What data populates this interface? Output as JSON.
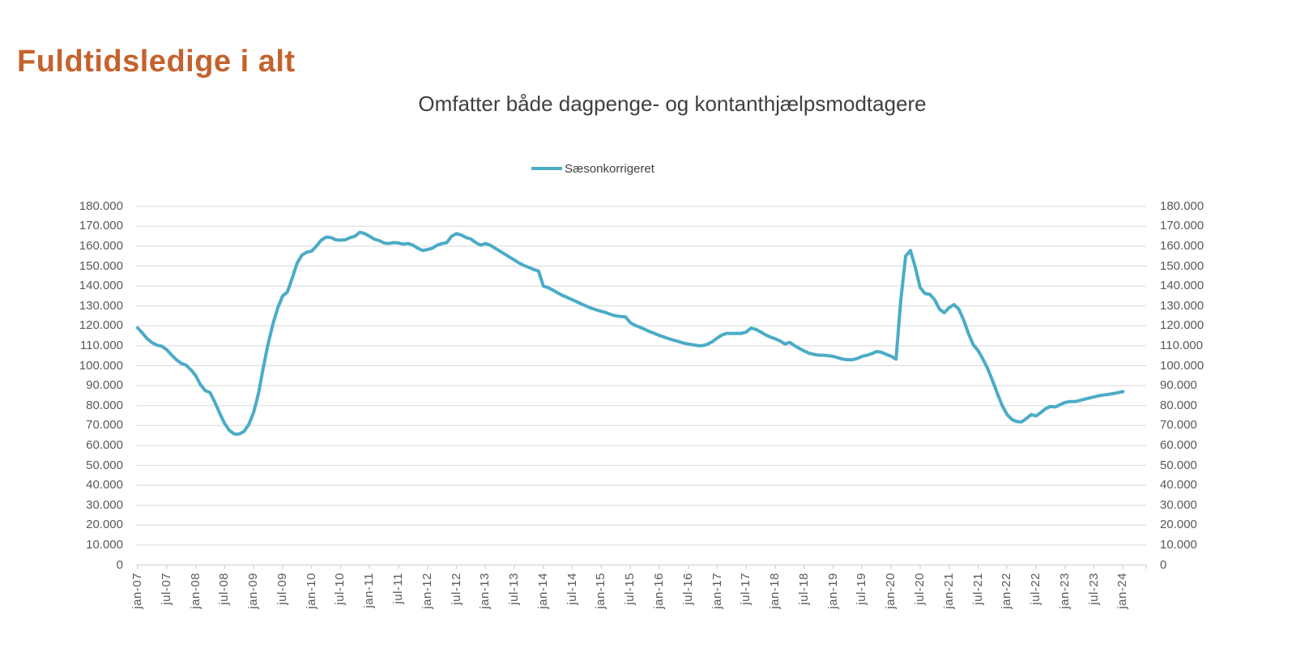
{
  "page": {
    "title": "Fuldtidsledige i alt"
  },
  "chart": {
    "subtitle": "Omfatter både dagpenge- og kontanthjælpsmodtagere",
    "legend": {
      "label": "Sæsonkorrigeret"
    },
    "colors": {
      "title": "#C4622D",
      "subtitle": "#3F3F3F",
      "axis_label": "#595959",
      "gridline": "#D9D9D9",
      "axis_line": "#D9D9D9",
      "line": "#4BACC6"
    }
  },
  "chart_data": {
    "type": "line",
    "title": "Omfatter både dagpenge- og kontanthjælpsmodtagere",
    "legend_position": "top-center",
    "grid": "horizontal",
    "ylim": [
      0,
      180000
    ],
    "y_tick_step": 10000,
    "y_tick_labels": [
      "180.000",
      "170.000",
      "160.000",
      "150.000",
      "140.000",
      "130.000",
      "120.000",
      "110.000",
      "100.000",
      "90.000",
      "80.000",
      "70.000",
      "60.000",
      "50.000",
      "40.000",
      "30.000",
      "20.000",
      "10.000",
      "0"
    ],
    "x_frequency": "monthly",
    "x_start": "jan-07",
    "x_end": "jan-24",
    "x_tick_labels": [
      "jan-07",
      "jul-07",
      "jan-08",
      "jul-08",
      "jan-09",
      "jul-09",
      "jan-10",
      "jul-10",
      "jan-11",
      "jul-11",
      "jan-12",
      "jul-12",
      "jan-13",
      "jul-13",
      "jan-14",
      "jul-14",
      "jan-15",
      "jul-15",
      "jan-16",
      "jul-16",
      "jan-17",
      "jul-17",
      "jan-18",
      "jul-18",
      "jan-19",
      "jul-19",
      "jan-20",
      "jul-20",
      "jan-21",
      "jul-21",
      "jan-22",
      "jul-22",
      "jan-23",
      "jul-23",
      "jan-24"
    ],
    "series": [
      {
        "name": "Sæsonkorrigeret",
        "color": "#4BACC6",
        "values": [
          119000,
          116300,
          113500,
          111500,
          110300,
          109800,
          108000,
          105500,
          103000,
          101200,
          100300,
          98000,
          95000,
          90500,
          87500,
          86500,
          81500,
          76000,
          71000,
          67500,
          65700,
          65700,
          67000,
          70500,
          76500,
          86000,
          99000,
          111000,
          121000,
          129000,
          135000,
          137000,
          144000,
          151500,
          155500,
          157000,
          157500,
          160000,
          163000,
          164500,
          164300,
          163200,
          163000,
          163200,
          164300,
          165000,
          167000,
          166300,
          165000,
          163500,
          162800,
          161600,
          161300,
          161800,
          161600,
          161000,
          161300,
          160500,
          159000,
          157800,
          158300,
          159000,
          160500,
          161300,
          161800,
          165000,
          166300,
          165600,
          164300,
          163600,
          161800,
          160500,
          161300,
          160500,
          159000,
          157500,
          156000,
          154500,
          153000,
          151500,
          150300,
          149300,
          148300,
          147500,
          139900,
          139200,
          137900,
          136500,
          135200,
          134200,
          133100,
          132000,
          130800,
          129800,
          128800,
          128000,
          127300,
          126600,
          125700,
          125000,
          124700,
          124500,
          121600,
          120200,
          119300,
          118200,
          117100,
          116200,
          115200,
          114400,
          113500,
          112800,
          112100,
          111400,
          110900,
          110500,
          110100,
          110100,
          110800,
          112100,
          113900,
          115500,
          116200,
          116200,
          116200,
          116200,
          116900,
          118900,
          118200,
          116900,
          115500,
          114400,
          113500,
          112500,
          110900,
          111700,
          110100,
          108700,
          107400,
          106300,
          105700,
          105300,
          105300,
          105000,
          104700,
          104000,
          103300,
          103000,
          103000,
          103600,
          104700,
          105300,
          106000,
          107100,
          106700,
          105700,
          104700,
          103300,
          133000,
          155000,
          157800,
          149400,
          139200,
          136200,
          135800,
          133100,
          128400,
          126600,
          129100,
          130700,
          128400,
          123000,
          116200,
          110500,
          107600,
          103300,
          98500,
          92500,
          86000,
          80000,
          75500,
          73000,
          72000,
          71800,
          73500,
          75500,
          74800,
          76500,
          78500,
          79500,
          79300,
          80500,
          81600,
          82000,
          82000,
          82500,
          83200,
          83800,
          84300,
          84900,
          85300,
          85600,
          86000,
          86500,
          87000
        ]
      }
    ]
  }
}
